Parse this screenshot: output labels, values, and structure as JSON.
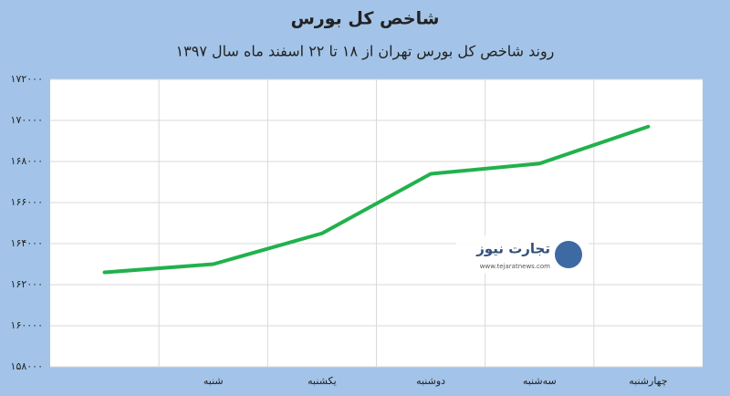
{
  "chart_data": {
    "type": "line",
    "title": "شاخص کل بورس",
    "subtitle": "روند شاخص کل بورس تهران از ۱۸ تا ۲۲ اسفند ماه سال ۱۳۹۷",
    "categories": [
      null,
      "شنبه",
      "یکشنبه",
      "دوشنبه",
      "سه‌شنبه",
      "چهارشنبه"
    ],
    "series": [
      {
        "name": "شاخص کل بورس",
        "color": "#22b14c",
        "values": [
          162600,
          163000,
          164500,
          167400,
          167900,
          169700
        ]
      }
    ],
    "ylim": [
      158000,
      172000
    ],
    "yticks": [
      {
        "value": 158000,
        "label": "۱۵۸۰۰۰"
      },
      {
        "value": 160000,
        "label": "۱۶۰۰۰۰"
      },
      {
        "value": 162000,
        "label": "۱۶۲۰۰۰"
      },
      {
        "value": 164000,
        "label": "۱۶۴۰۰۰"
      },
      {
        "value": 166000,
        "label": "۱۶۶۰۰۰"
      },
      {
        "value": 168000,
        "label": "۱۶۸۰۰۰"
      },
      {
        "value": 170000,
        "label": "۱۷۰۰۰۰"
      },
      {
        "value": 172000,
        "label": "۱۷۲۰۰۰"
      }
    ],
    "grid": true,
    "watermark_title": "تجارت نیوز",
    "watermark_url": "www.tejaratnews.com"
  }
}
